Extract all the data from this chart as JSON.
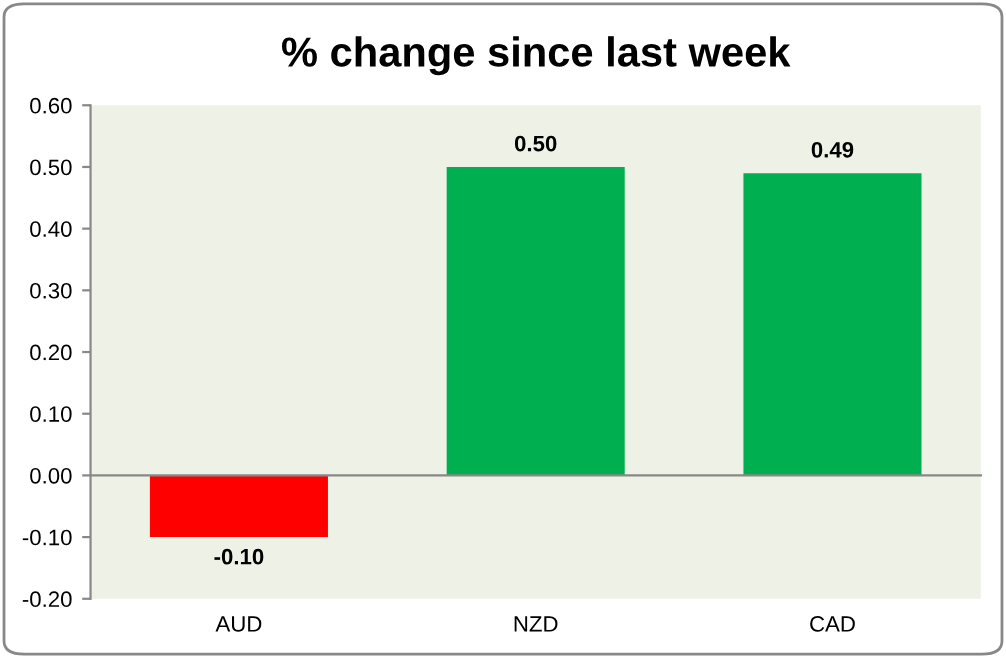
{
  "chart_data": {
    "type": "bar",
    "title": "% change since last week",
    "categories": [
      "AUD",
      "NZD",
      "CAD"
    ],
    "values": [
      -0.1,
      0.5,
      0.49
    ],
    "colors": [
      "#ff0000",
      "#00b050",
      "#00b050"
    ],
    "value_labels": [
      "-0.10",
      "0.50",
      "0.49"
    ],
    "ylim": [
      -0.2,
      0.6
    ],
    "yticks": [
      {
        "value": -0.2,
        "label": "-0.20"
      },
      {
        "value": -0.1,
        "label": "-0.10"
      },
      {
        "value": 0,
        "label": "0.00"
      },
      {
        "value": 0.1,
        "label": "0.10"
      },
      {
        "value": 0.2,
        "label": "0.20"
      },
      {
        "value": 0.3,
        "label": "0.30"
      },
      {
        "value": 0.4,
        "label": "0.40"
      },
      {
        "value": 0.5,
        "label": "0.50"
      },
      {
        "value": 0.6,
        "label": "0.60"
      }
    ],
    "legend": false
  }
}
